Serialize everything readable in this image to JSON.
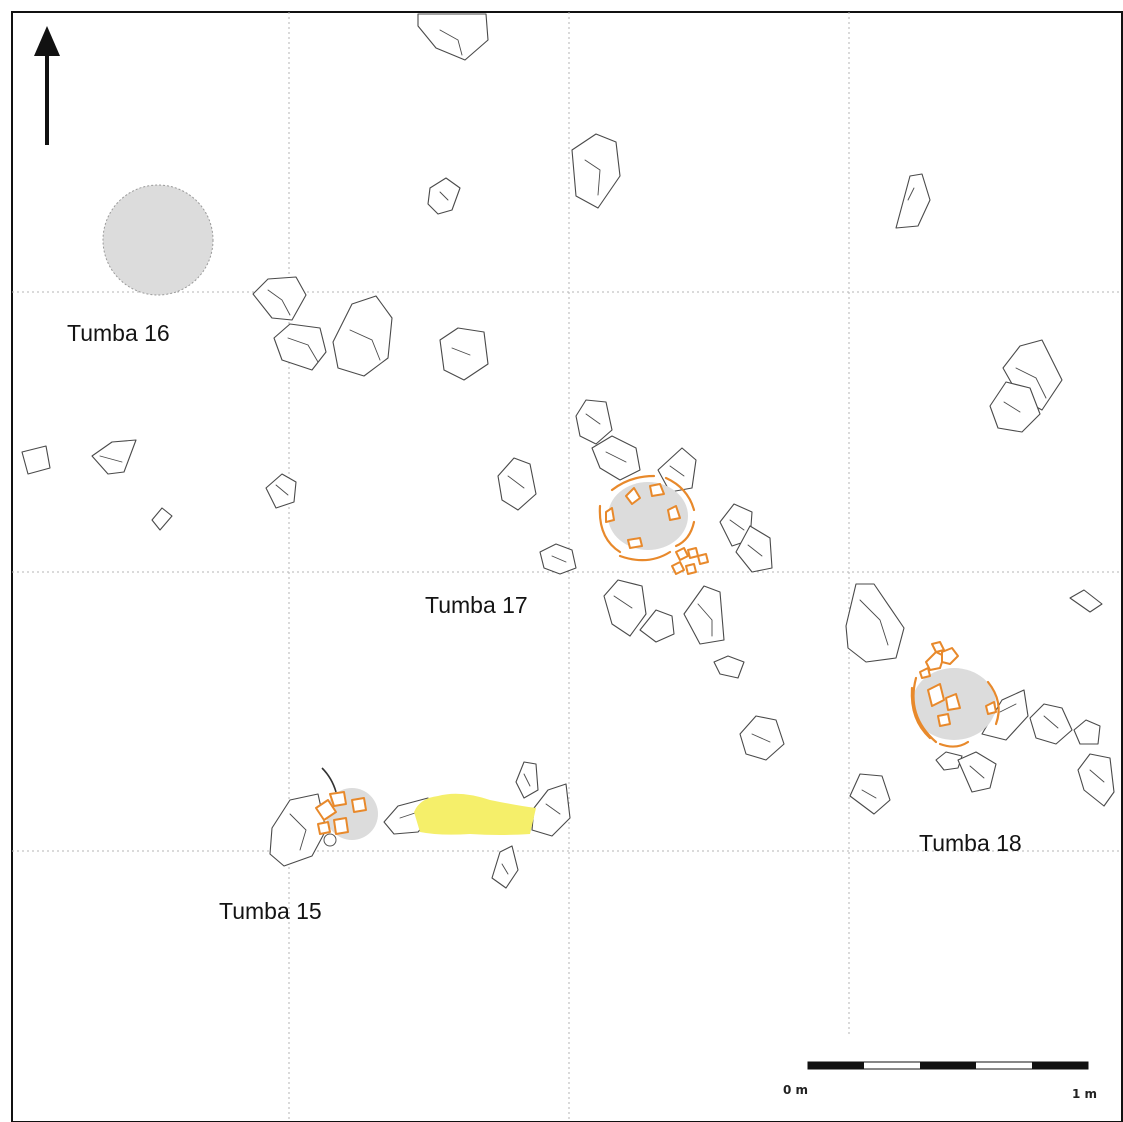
{
  "tombs": {
    "t16": "Tumba 16",
    "t17": "Tumba 17",
    "t15": "Tumba 15",
    "t18": "Tumba 18"
  },
  "scale_bar": {
    "start_label": "0 m",
    "end_label": "1 m"
  },
  "icons": {
    "north": "north-arrow-icon"
  },
  "colors": {
    "pit_fill": "#dcdcdc",
    "bone_outline": "#e8892b",
    "ochre_patch": "#f5ef6a",
    "stone_outline": "#4a4a4a",
    "grid": "#b5b5b5"
  }
}
